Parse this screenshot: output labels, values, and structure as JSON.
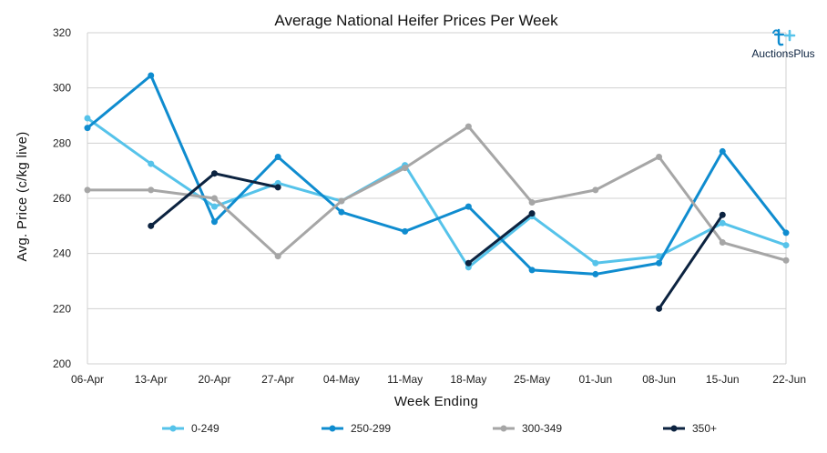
{
  "chart_data": {
    "type": "line",
    "title": "Average National Heifer Prices Per Week",
    "xlabel": "Week Ending",
    "ylabel": "Avg. Price (c/kg live)",
    "categories": [
      "06-Apr",
      "13-Apr",
      "20-Apr",
      "27-Apr",
      "04-May",
      "11-May",
      "18-May",
      "25-May",
      "01-Jun",
      "08-Jun",
      "15-Jun",
      "22-Jun"
    ],
    "ylim": [
      200,
      320
    ],
    "yticks": [
      200,
      220,
      240,
      260,
      280,
      300,
      320
    ],
    "grid": "horizontal",
    "legend_position": "bottom",
    "series": [
      {
        "name": "0-249",
        "color": "#56c3ea",
        "values": [
          289,
          272.5,
          257,
          265.5,
          259,
          272,
          235,
          253.5,
          236.5,
          239,
          251,
          243
        ]
      },
      {
        "name": "250-299",
        "color": "#0f8ccf",
        "values": [
          285.5,
          304.5,
          251.5,
          275,
          255,
          248,
          257,
          234,
          232.5,
          236.5,
          277,
          247.5
        ]
      },
      {
        "name": "300-349",
        "color": "#a6a6a6",
        "values": [
          263,
          263,
          260,
          239,
          259,
          271,
          286,
          258.5,
          263,
          275,
          244,
          237.5
        ]
      },
      {
        "name": "350+",
        "color": "#0c2340",
        "values": [
          null,
          250,
          269,
          264,
          null,
          null,
          236.5,
          254.5,
          null,
          220,
          254,
          null
        ]
      }
    ]
  },
  "logo": {
    "text": "AuctionsPlus",
    "icon": "auctionsplus-logo-icon",
    "color": "#0f8ccf"
  }
}
